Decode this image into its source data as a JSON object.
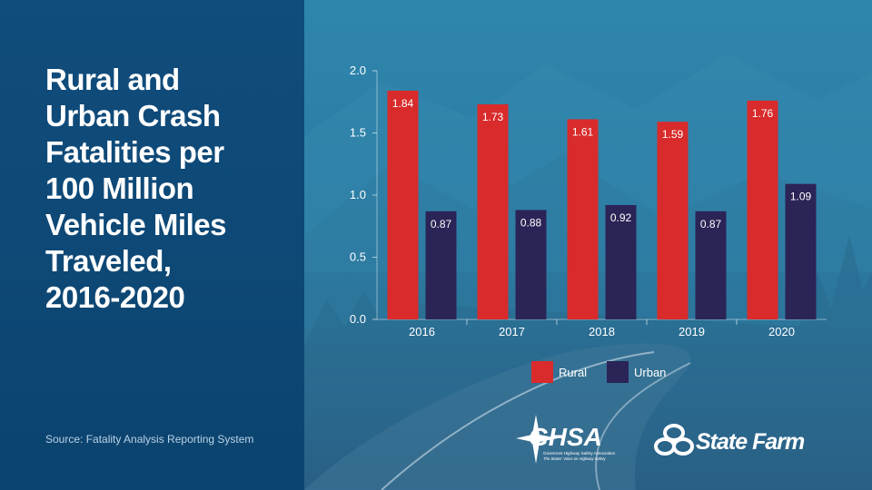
{
  "title_lines": [
    "Rural and",
    "Urban Crash",
    "Fatalities per",
    "100 Million",
    "Vehicle Miles",
    "Traveled,",
    "2016-2020"
  ],
  "source": "Source: Fatality Analysis Reporting System",
  "colors": {
    "rural": "#d92b2b",
    "urban": "#2b2456",
    "panel": "#0e4878",
    "axis": "#ffffff"
  },
  "logos": {
    "ghsa_wordmark": "GHSA",
    "ghsa_subline1": "Governors Highway Safety Association",
    "ghsa_subline2": "The States' Voice on Highway Safety",
    "statefarm": "State Farm"
  },
  "chart_data": {
    "type": "bar",
    "title": "Rural and Urban Crash Fatalities per 100 Million Vehicle Miles Traveled, 2016-2020",
    "categories": [
      "2016",
      "2017",
      "2018",
      "2019",
      "2020"
    ],
    "series": [
      {
        "name": "Rural",
        "values": [
          1.84,
          1.73,
          1.61,
          1.59,
          1.76
        ],
        "labels": [
          "1.84",
          "1.73",
          "1.61",
          "1.59",
          "1.76"
        ]
      },
      {
        "name": "Urban",
        "values": [
          0.87,
          0.88,
          0.92,
          0.87,
          1.09
        ],
        "labels": [
          "0.87",
          "0.88",
          "0.92",
          "0.87",
          "1.09"
        ]
      }
    ],
    "ylim": [
      0,
      2.0
    ],
    "yticks": [
      0.0,
      0.5,
      1.0,
      1.5,
      2.0
    ],
    "ytick_labels": [
      "0.0",
      "0.5",
      "1.0",
      "1.5",
      "2.0"
    ],
    "xlabel": "",
    "ylabel": "",
    "legend": [
      "Rural",
      "Urban"
    ],
    "legend_position": "bottom-center"
  }
}
